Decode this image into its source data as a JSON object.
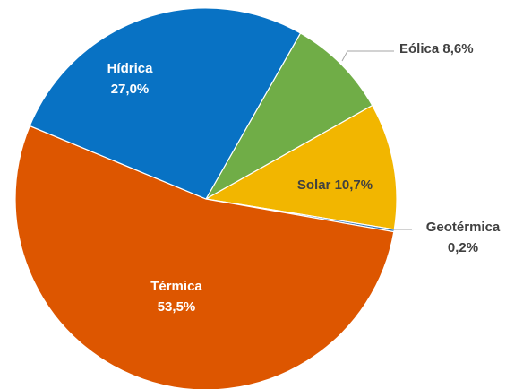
{
  "chart_data": {
    "type": "pie",
    "categories": [
      "Eólica",
      "Solar",
      "Geotérmica",
      "Térmica",
      "Hídrica"
    ],
    "values": [
      8.6,
      10.7,
      0.2,
      53.5,
      27.0
    ],
    "value_labels": [
      "8,6%",
      "10,7%",
      "0,2%",
      "53,5%",
      "27,0%"
    ],
    "colors": [
      "#70ad47",
      "#f2b600",
      "#2e75b6",
      "#dd5600",
      "#0872c4"
    ]
  }
}
